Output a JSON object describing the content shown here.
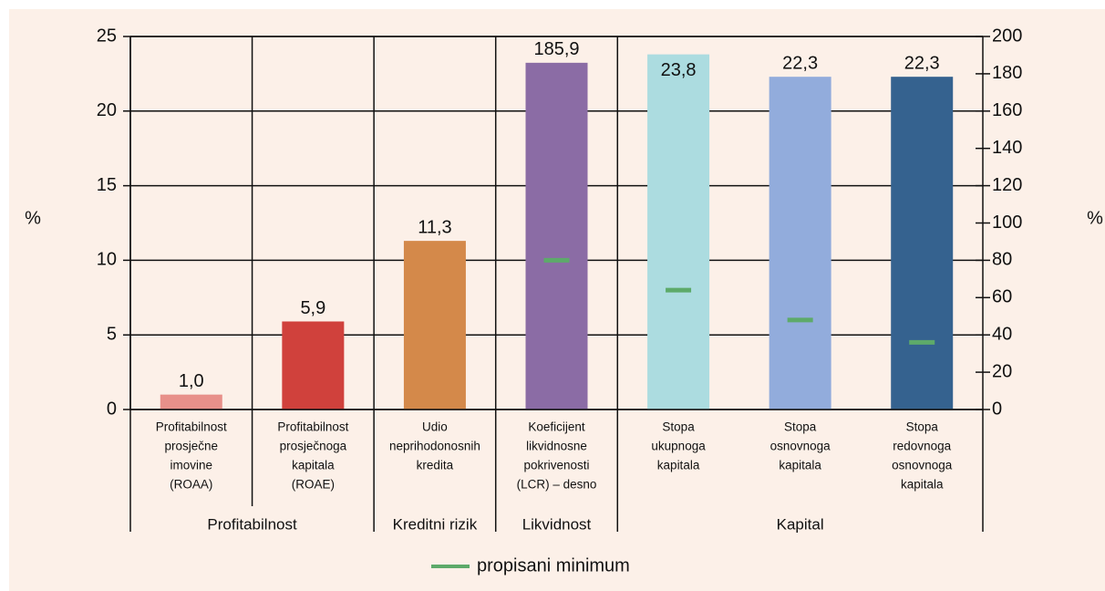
{
  "chart_data": {
    "type": "bar",
    "y_label": "%",
    "y2_label": "%",
    "ylim": [
      0,
      25
    ],
    "yticks": [
      0,
      5,
      10,
      15,
      20,
      25
    ],
    "y2lim": [
      0,
      200
    ],
    "y2ticks": [
      0,
      20,
      40,
      60,
      80,
      100,
      120,
      140,
      160,
      180,
      200
    ],
    "groups": [
      {
        "label": "Profitabilnost",
        "categories": [
          [
            "Profitabilnost",
            "prosječne",
            "imovine",
            "(ROAA)"
          ],
          [
            "Profitabilnost",
            "prosječnoga",
            "kapitala",
            "(ROAE)"
          ]
        ]
      },
      {
        "label": "Kreditni rizik",
        "categories": [
          [
            "Udio",
            "neprihodonosnih",
            "kredita"
          ]
        ]
      },
      {
        "label": "Likvidnost",
        "categories": [
          [
            "Koeficijent",
            "likvidnosne",
            "pokrivenosti",
            "(LCR) – desno"
          ]
        ]
      },
      {
        "label": "Kapital",
        "categories": [
          [
            "Stopa",
            "ukupnoga",
            "kapitala"
          ],
          [
            "Stopa",
            "osnovnoga",
            "kapitala"
          ],
          [
            "Stopa",
            "redovnoga",
            "osnovnoga",
            "kapitala"
          ]
        ]
      }
    ],
    "bars": {
      "values": [
        1.0,
        5.9,
        11.3,
        185.9,
        23.8,
        22.3,
        22.3
      ],
      "value_labels": [
        "1,0",
        "5,9",
        "11,3",
        "185,9",
        "23,8",
        "22,3",
        "22,3"
      ],
      "axes": [
        "y",
        "y",
        "y",
        "y2",
        "y",
        "y",
        "y"
      ],
      "colors": [
        "#e8908a",
        "#d0413c",
        "#d4894a",
        "#8b6ca5",
        "#acdce0",
        "#92acdc",
        "#35628f"
      ]
    },
    "minimum": {
      "name": "propisani minimum",
      "color": "#5daa6a",
      "values": [
        null,
        null,
        null,
        80,
        8,
        6,
        4.5
      ],
      "axes": [
        "y",
        "y",
        "y",
        "y2",
        "y",
        "y",
        "y"
      ]
    }
  }
}
